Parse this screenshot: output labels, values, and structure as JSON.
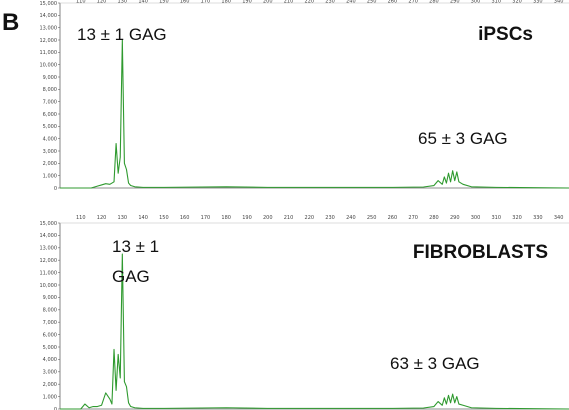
{
  "panel_label": "B",
  "colors": {
    "trace": "#2f9a2f",
    "axis": "#666666",
    "text": "#111111"
  },
  "chart_data": [
    {
      "type": "line",
      "title": "iPSCs",
      "xlim": [
        100,
        345
      ],
      "ylim": [
        0,
        15000
      ],
      "xticks": [
        110,
        120,
        130,
        140,
        150,
        160,
        170,
        180,
        190,
        200,
        210,
        220,
        230,
        240,
        250,
        260,
        270,
        280,
        290,
        300,
        310,
        320,
        330,
        340
      ],
      "yticks": [
        "0",
        "1,000",
        "2,000",
        "3,000",
        "4,000",
        "5,000",
        "6,000",
        "7,000",
        "8,000",
        "9,000",
        "10,000",
        "11,000",
        "12,000",
        "13,000",
        "14,000",
        "15,000"
      ],
      "annotations": [
        {
          "text": "13 ± 1 GAG",
          "x": 125,
          "y": 12800
        },
        {
          "text": "65 ± 3 GAG",
          "x": 292,
          "y": 3400
        }
      ],
      "series": [
        {
          "x": [
            100,
            115,
            118,
            120,
            122,
            124,
            126,
            127,
            128,
            129,
            130,
            131,
            132,
            133,
            134,
            136,
            140,
            150,
            180,
            200,
            230,
            260,
            275,
            280,
            282,
            284,
            285,
            286,
            287,
            288,
            289,
            290,
            291,
            292,
            294,
            298,
            310,
            345
          ],
          "y": [
            0,
            0,
            150,
            250,
            350,
            300,
            500,
            3600,
            1200,
            2500,
            12000,
            2000,
            1500,
            400,
            200,
            100,
            50,
            50,
            100,
            50,
            50,
            50,
            80,
            200,
            600,
            300,
            900,
            400,
            1200,
            500,
            1400,
            600,
            1300,
            500,
            300,
            100,
            50,
            0
          ]
        }
      ]
    },
    {
      "type": "line",
      "title": "FIBROBLASTS",
      "xlim": [
        100,
        345
      ],
      "ylim": [
        0,
        15000
      ],
      "xticks": [
        110,
        120,
        130,
        140,
        150,
        160,
        170,
        180,
        190,
        200,
        210,
        220,
        230,
        240,
        250,
        260,
        270,
        280,
        290,
        300,
        310,
        320,
        330,
        340
      ],
      "yticks": [
        "0",
        "1,000",
        "2,000",
        "3,000",
        "4,000",
        "5,000",
        "6,000",
        "7,000",
        "8,000",
        "9,000",
        "10,000",
        "11,000",
        "12,000",
        "13,000",
        "14,000",
        "15,000"
      ],
      "annotations": [
        {
          "text": "13 ± 1",
          "x": 138,
          "y": 13200
        },
        {
          "text": "GAG",
          "x": 126,
          "y": 11000
        },
        {
          "text": "63 ± 3 GAG",
          "x": 292,
          "y": 3300
        }
      ],
      "series": [
        {
          "x": [
            100,
            110,
            112,
            114,
            116,
            118,
            120,
            122,
            124,
            125,
            126,
            127,
            128,
            129,
            130,
            131,
            132,
            133,
            134,
            136,
            140,
            150,
            180,
            200,
            230,
            260,
            275,
            280,
            282,
            284,
            285,
            286,
            287,
            288,
            289,
            290,
            291,
            292,
            294,
            298,
            310,
            345
          ],
          "y": [
            0,
            0,
            400,
            100,
            200,
            200,
            300,
            1300,
            800,
            400,
            4800,
            1500,
            4400,
            2500,
            12500,
            2200,
            1800,
            500,
            200,
            100,
            50,
            50,
            100,
            50,
            50,
            50,
            80,
            200,
            600,
            300,
            900,
            400,
            1100,
            500,
            1200,
            500,
            1000,
            400,
            300,
            100,
            50,
            0
          ]
        }
      ]
    }
  ]
}
